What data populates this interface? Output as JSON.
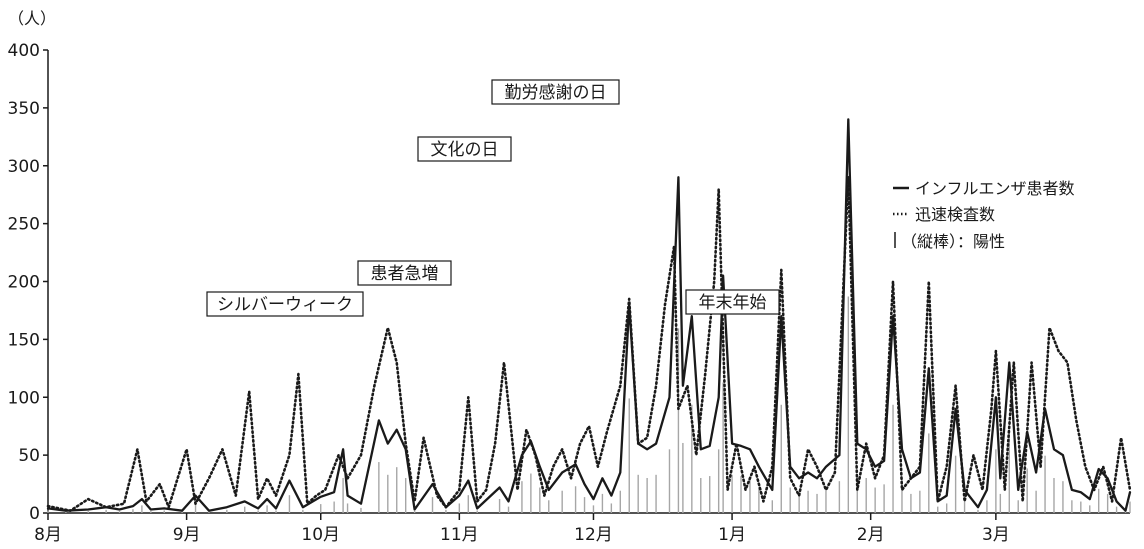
{
  "chart_data": {
    "type": "line",
    "unit_label": "（人）",
    "ylim": [
      0,
      400
    ],
    "yticks": [
      0,
      50,
      100,
      150,
      200,
      250,
      300,
      350,
      400
    ],
    "month_labels": [
      "8月",
      "9月",
      "10月",
      "11月",
      "12月",
      "1月",
      "2月",
      "3月"
    ],
    "x_start_date": "2009-08-01",
    "month_starts": [
      "2009-08-01",
      "2009-09-01",
      "2009-10-01",
      "2009-11-01",
      "2009-12-01",
      "2010-01-01",
      "2010-02-01",
      "2010-03-01"
    ],
    "x_end_date": "2010-03-31",
    "grid": false,
    "legend_position": "right",
    "series": [
      {
        "name": "インフルエンザ患者数",
        "style": "solid",
        "color": "#1a1a1a",
        "points": [
          [
            "2009-08-01",
            4
          ],
          [
            "2009-08-05",
            2
          ],
          [
            "2009-08-10",
            3
          ],
          [
            "2009-08-14",
            5
          ],
          [
            "2009-08-17",
            3
          ],
          [
            "2009-08-20",
            6
          ],
          [
            "2009-08-22",
            12
          ],
          [
            "2009-08-24",
            3
          ],
          [
            "2009-08-27",
            4
          ],
          [
            "2009-08-31",
            2
          ],
          [
            "2009-09-03",
            15
          ],
          [
            "2009-09-06",
            2
          ],
          [
            "2009-09-10",
            5
          ],
          [
            "2009-09-14",
            10
          ],
          [
            "2009-09-17",
            4
          ],
          [
            "2009-09-19",
            12
          ],
          [
            "2009-09-21",
            4
          ],
          [
            "2009-09-24",
            28
          ],
          [
            "2009-09-27",
            5
          ],
          [
            "2009-10-01",
            14
          ],
          [
            "2009-10-04",
            18
          ],
          [
            "2009-10-06",
            55
          ],
          [
            "2009-10-07",
            15
          ],
          [
            "2009-10-10",
            8
          ],
          [
            "2009-10-14",
            80
          ],
          [
            "2009-10-16",
            60
          ],
          [
            "2009-10-18",
            72
          ],
          [
            "2009-10-20",
            55
          ],
          [
            "2009-10-22",
            3
          ],
          [
            "2009-10-26",
            25
          ],
          [
            "2009-10-29",
            5
          ],
          [
            "2009-11-01",
            15
          ],
          [
            "2009-11-03",
            28
          ],
          [
            "2009-11-05",
            4
          ],
          [
            "2009-11-10",
            22
          ],
          [
            "2009-11-12",
            10
          ],
          [
            "2009-11-15",
            50
          ],
          [
            "2009-11-17",
            62
          ],
          [
            "2009-11-19",
            40
          ],
          [
            "2009-11-21",
            20
          ],
          [
            "2009-11-24",
            35
          ],
          [
            "2009-11-27",
            42
          ],
          [
            "2009-11-29",
            25
          ],
          [
            "2009-12-01",
            12
          ],
          [
            "2009-12-03",
            30
          ],
          [
            "2009-12-05",
            15
          ],
          [
            "2009-12-07",
            35
          ],
          [
            "2009-12-09",
            180
          ],
          [
            "2009-12-11",
            60
          ],
          [
            "2009-12-13",
            55
          ],
          [
            "2009-12-15",
            60
          ],
          [
            "2009-12-18",
            100
          ],
          [
            "2009-12-20",
            290
          ],
          [
            "2009-12-21",
            110
          ],
          [
            "2009-12-23",
            170
          ],
          [
            "2009-12-25",
            55
          ],
          [
            "2009-12-27",
            58
          ],
          [
            "2009-12-29",
            100
          ],
          [
            "2009-12-30",
            205
          ],
          [
            "2010-01-01",
            60
          ],
          [
            "2010-01-03",
            58
          ],
          [
            "2010-01-05",
            55
          ],
          [
            "2010-01-07",
            40
          ],
          [
            "2010-01-10",
            20
          ],
          [
            "2010-01-12",
            170
          ],
          [
            "2010-01-14",
            40
          ],
          [
            "2010-01-16",
            30
          ],
          [
            "2010-01-18",
            35
          ],
          [
            "2010-01-20",
            30
          ],
          [
            "2010-01-22",
            40
          ],
          [
            "2010-01-25",
            50
          ],
          [
            "2010-01-27",
            340
          ],
          [
            "2010-01-29",
            60
          ],
          [
            "2010-01-31",
            55
          ],
          [
            "2010-02-02",
            40
          ],
          [
            "2010-02-04",
            45
          ],
          [
            "2010-02-06",
            170
          ],
          [
            "2010-02-08",
            55
          ],
          [
            "2010-02-10",
            30
          ],
          [
            "2010-02-12",
            35
          ],
          [
            "2010-02-14",
            125
          ],
          [
            "2010-02-16",
            10
          ],
          [
            "2010-02-18",
            15
          ],
          [
            "2010-02-20",
            90
          ],
          [
            "2010-02-22",
            20
          ],
          [
            "2010-02-25",
            5
          ],
          [
            "2010-02-27",
            20
          ],
          [
            "2010-03-01",
            100
          ],
          [
            "2010-03-02",
            30
          ],
          [
            "2010-03-04",
            130
          ],
          [
            "2010-03-06",
            20
          ],
          [
            "2010-03-08",
            70
          ],
          [
            "2010-03-10",
            35
          ],
          [
            "2010-03-12",
            90
          ],
          [
            "2010-03-14",
            55
          ],
          [
            "2010-03-16",
            50
          ],
          [
            "2010-03-18",
            20
          ],
          [
            "2010-03-20",
            18
          ],
          [
            "2010-03-22",
            12
          ],
          [
            "2010-03-24",
            38
          ],
          [
            "2010-03-26",
            30
          ],
          [
            "2010-03-28",
            10
          ],
          [
            "2010-03-30",
            2
          ],
          [
            "2010-03-31",
            18
          ]
        ]
      },
      {
        "name": "迅速検査数",
        "style": "dotted",
        "color": "#1a1a1a",
        "points": [
          [
            "2009-08-01",
            6
          ],
          [
            "2009-08-06",
            2
          ],
          [
            "2009-08-10",
            12
          ],
          [
            "2009-08-14",
            5
          ],
          [
            "2009-08-18",
            8
          ],
          [
            "2009-08-21",
            55
          ],
          [
            "2009-08-23",
            10
          ],
          [
            "2009-08-26",
            25
          ],
          [
            "2009-08-28",
            5
          ],
          [
            "2009-09-01",
            55
          ],
          [
            "2009-09-03",
            8
          ],
          [
            "2009-09-06",
            30
          ],
          [
            "2009-09-09",
            55
          ],
          [
            "2009-09-12",
            15
          ],
          [
            "2009-09-15",
            105
          ],
          [
            "2009-09-17",
            12
          ],
          [
            "2009-09-19",
            30
          ],
          [
            "2009-09-21",
            15
          ],
          [
            "2009-09-24",
            50
          ],
          [
            "2009-09-26",
            120
          ],
          [
            "2009-09-28",
            8
          ],
          [
            "2009-09-30",
            15
          ],
          [
            "2009-10-02",
            20
          ],
          [
            "2009-10-05",
            50
          ],
          [
            "2009-10-07",
            30
          ],
          [
            "2009-10-10",
            50
          ],
          [
            "2009-10-13",
            110
          ],
          [
            "2009-10-16",
            160
          ],
          [
            "2009-10-18",
            130
          ],
          [
            "2009-10-20",
            60
          ],
          [
            "2009-10-22",
            10
          ],
          [
            "2009-10-24",
            65
          ],
          [
            "2009-10-27",
            15
          ],
          [
            "2009-10-29",
            5
          ],
          [
            "2009-11-01",
            20
          ],
          [
            "2009-11-03",
            100
          ],
          [
            "2009-11-05",
            10
          ],
          [
            "2009-11-07",
            20
          ],
          [
            "2009-11-09",
            60
          ],
          [
            "2009-11-11",
            130
          ],
          [
            "2009-11-14",
            20
          ],
          [
            "2009-11-16",
            72
          ],
          [
            "2009-11-18",
            50
          ],
          [
            "2009-11-20",
            15
          ],
          [
            "2009-11-22",
            40
          ],
          [
            "2009-11-24",
            55
          ],
          [
            "2009-11-26",
            30
          ],
          [
            "2009-11-28",
            60
          ],
          [
            "2009-11-30",
            75
          ],
          [
            "2009-12-02",
            40
          ],
          [
            "2009-12-04",
            70
          ],
          [
            "2009-12-07",
            110
          ],
          [
            "2009-12-09",
            185
          ],
          [
            "2009-12-11",
            60
          ],
          [
            "2009-12-13",
            65
          ],
          [
            "2009-12-15",
            110
          ],
          [
            "2009-12-17",
            180
          ],
          [
            "2009-12-19",
            230
          ],
          [
            "2009-12-20",
            90
          ],
          [
            "2009-12-22",
            110
          ],
          [
            "2009-12-24",
            50
          ],
          [
            "2009-12-26",
            120
          ],
          [
            "2009-12-28",
            200
          ],
          [
            "2009-12-29",
            280
          ],
          [
            "2009-12-31",
            20
          ],
          [
            "2010-01-02",
            60
          ],
          [
            "2010-01-04",
            20
          ],
          [
            "2010-01-06",
            40
          ],
          [
            "2010-01-08",
            10
          ],
          [
            "2010-01-10",
            40
          ],
          [
            "2010-01-12",
            210
          ],
          [
            "2010-01-14",
            30
          ],
          [
            "2010-01-16",
            15
          ],
          [
            "2010-01-18",
            55
          ],
          [
            "2010-01-20",
            40
          ],
          [
            "2010-01-22",
            20
          ],
          [
            "2010-01-24",
            35
          ],
          [
            "2010-01-27",
            290
          ],
          [
            "2010-01-29",
            20
          ],
          [
            "2010-01-31",
            60
          ],
          [
            "2010-02-02",
            30
          ],
          [
            "2010-02-04",
            50
          ],
          [
            "2010-02-06",
            200
          ],
          [
            "2010-02-08",
            20
          ],
          [
            "2010-02-10",
            30
          ],
          [
            "2010-02-12",
            40
          ],
          [
            "2010-02-14",
            200
          ],
          [
            "2010-02-16",
            10
          ],
          [
            "2010-02-18",
            40
          ],
          [
            "2010-02-20",
            110
          ],
          [
            "2010-02-22",
            10
          ],
          [
            "2010-02-24",
            50
          ],
          [
            "2010-02-26",
            20
          ],
          [
            "2010-02-28",
            90
          ],
          [
            "2010-03-01",
            140
          ],
          [
            "2010-03-03",
            20
          ],
          [
            "2010-03-05",
            130
          ],
          [
            "2010-03-07",
            10
          ],
          [
            "2010-03-09",
            130
          ],
          [
            "2010-03-11",
            40
          ],
          [
            "2010-03-13",
            160
          ],
          [
            "2010-03-15",
            140
          ],
          [
            "2010-03-17",
            130
          ],
          [
            "2010-03-19",
            80
          ],
          [
            "2010-03-21",
            40
          ],
          [
            "2010-03-23",
            20
          ],
          [
            "2010-03-25",
            40
          ],
          [
            "2010-03-27",
            10
          ],
          [
            "2010-03-29",
            65
          ],
          [
            "2010-03-31",
            20
          ]
        ]
      }
    ],
    "bars": {
      "name": "（縦棒）：陽性",
      "style": "thin-gray-bars",
      "color": "#a6a6a6"
    },
    "annotations": [
      {
        "text": "シルバーウィーク",
        "date": "2009-09-22"
      },
      {
        "text": "患者急増",
        "date": "2009-10-26"
      },
      {
        "text": "文化の日",
        "date": "2009-11-03"
      },
      {
        "text": "勤労感謝の日",
        "date": "2009-11-23"
      },
      {
        "text": "年末年始",
        "date": "2009-12-31"
      }
    ]
  }
}
